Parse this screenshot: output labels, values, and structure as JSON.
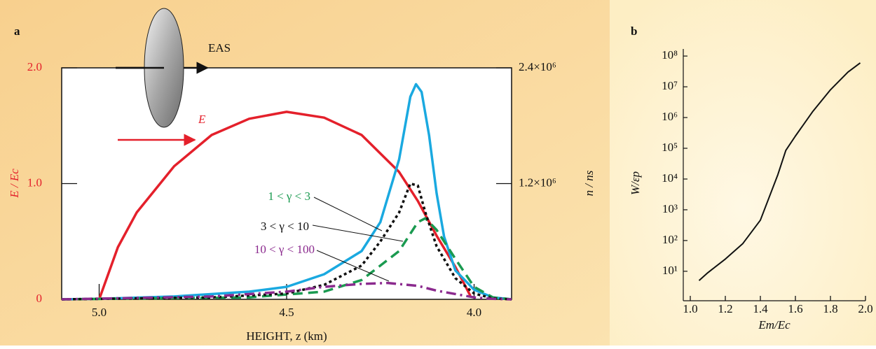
{
  "chart_data": [
    {
      "type": "line",
      "panel_label": "a",
      "annotation": "EAS",
      "xlabel": "HEIGHT, z (km)",
      "ylabel": "E / Ec",
      "y2label": "n / ns",
      "xlim": [
        5.1,
        3.9
      ],
      "ylim": [
        0,
        2
      ],
      "y2lim": [
        0,
        2400000
      ],
      "xticks": [
        {
          "value": 5,
          "label": "5.0"
        },
        4.5,
        {
          "value": 4,
          "label": "4.0"
        }
      ],
      "yticks": [
        0,
        {
          "value": 1,
          "label": "1.0"
        },
        {
          "value": 2,
          "label": "2.0"
        }
      ],
      "y2ticks": [
        {
          "value": 1200000,
          "label": "1.2×10⁶"
        },
        {
          "value": 2400000,
          "label": "2.4×10⁶"
        }
      ],
      "series": [
        {
          "name": "E",
          "color": "#e4202b",
          "style": "solid",
          "axis": "y",
          "x": [
            5.0,
            4.95,
            4.9,
            4.8,
            4.7,
            4.6,
            4.5,
            4.4,
            4.3,
            4.2,
            4.15,
            4.1,
            4.05,
            4.01
          ],
          "values": [
            0,
            0.45,
            0.75,
            1.15,
            1.42,
            1.56,
            1.62,
            1.57,
            1.42,
            1.1,
            0.85,
            0.55,
            0.28,
            0.03
          ]
        },
        {
          "color": "#1aa9e0",
          "style": "solid",
          "axis": "y2",
          "x": [
            5.1,
            5.0,
            4.8,
            4.6,
            4.5,
            4.4,
            4.3,
            4.25,
            4.2,
            4.17,
            4.155,
            4.14,
            4.12,
            4.1,
            4.08,
            4.05,
            4.0,
            3.95,
            3.9
          ],
          "values": [
            0,
            5000,
            30000,
            80000,
            130000,
            260000,
            500000,
            800000,
            1450000,
            2100000,
            2230000,
            2150000,
            1700000,
            1100000,
            650000,
            300000,
            100000,
            20000,
            0
          ]
        },
        {
          "name": "1 < γ < 3",
          "color": "#1a9a50",
          "style": "dashed",
          "axis": "y2",
          "x": [
            5.1,
            4.6,
            4.4,
            4.3,
            4.2,
            4.15,
            4.13,
            4.1,
            4.05,
            4.0,
            3.95,
            3.9
          ],
          "values": [
            0,
            20000,
            80000,
            200000,
            500000,
            800000,
            840000,
            720000,
            420000,
            130000,
            20000,
            0
          ]
        },
        {
          "name": "3 < γ < 10",
          "color": "#111111",
          "style": "dotted",
          "axis": "y2",
          "x": [
            5.1,
            4.7,
            4.5,
            4.4,
            4.3,
            4.25,
            4.2,
            4.17,
            4.15,
            4.13,
            4.1,
            4.05,
            4.0,
            3.95,
            3.9
          ],
          "values": [
            0,
            20000,
            60000,
            150000,
            350000,
            600000,
            900000,
            1200000,
            1180000,
            900000,
            550000,
            220000,
            60000,
            10000,
            0
          ]
        },
        {
          "name": "10 < γ < 100",
          "color": "#8b2a8e",
          "style": "dashdot",
          "axis": "y2",
          "x": [
            5.1,
            4.7,
            4.5,
            4.4,
            4.3,
            4.23,
            4.15,
            4.1,
            4.0,
            3.95,
            3.9
          ],
          "values": [
            0,
            30000,
            80000,
            130000,
            160000,
            170000,
            140000,
            90000,
            20000,
            5000,
            0
          ]
        }
      ]
    },
    {
      "type": "line",
      "panel_label": "b",
      "xlabel": "Em/Ec",
      "ylabel": "W/εp",
      "log_y": true,
      "xlim": [
        0.96,
        2.0
      ],
      "ylim": [
        1.1,
        170000000
      ],
      "xticks": [
        {
          "value": 1,
          "label": "1.0"
        },
        1.2,
        1.4,
        1.6,
        1.8,
        {
          "value": 2,
          "label": "2.0"
        }
      ],
      "yticks": [
        {
          "value": 10,
          "label": "10¹"
        },
        {
          "value": 100,
          "label": "10²"
        },
        {
          "value": 1000,
          "label": "10³"
        },
        {
          "value": 10000,
          "label": "10⁴"
        },
        {
          "value": 100000,
          "label": "10⁵"
        },
        {
          "value": 1000000,
          "label": "10⁶"
        },
        {
          "value": 10000000,
          "label": "10⁷"
        },
        {
          "value": 100000000,
          "label": "10⁸"
        }
      ],
      "series": [
        {
          "color": "#111111",
          "style": "solid",
          "x": [
            1.05,
            1.1,
            1.2,
            1.3,
            1.4,
            1.5,
            1.545,
            1.6,
            1.7,
            1.8,
            1.9,
            1.97
          ],
          "values": [
            5,
            9,
            25,
            80,
            460,
            14000,
            85000,
            250000,
            1600000,
            8000000,
            30000000,
            60000000
          ]
        }
      ]
    }
  ]
}
